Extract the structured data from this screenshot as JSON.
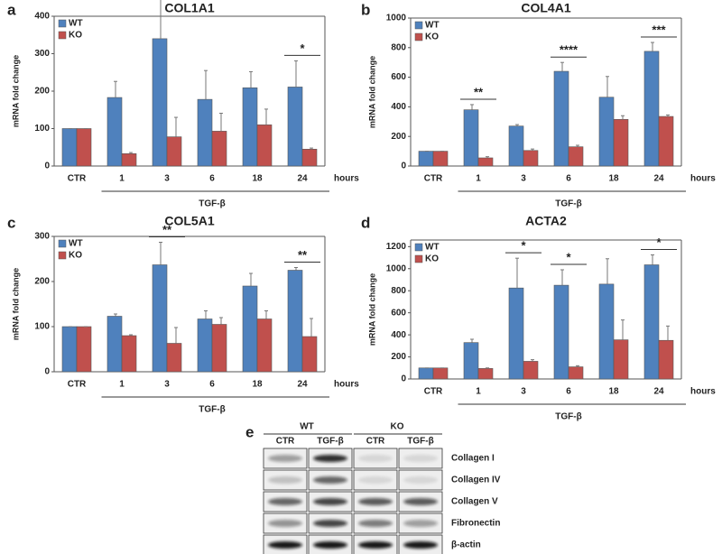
{
  "chart_data": [
    {
      "type": "bar",
      "panel": "a",
      "title": "COL1A1",
      "y_label": "mRNA fold change",
      "x_unit": "hours",
      "group_label": "TGF-β",
      "categories": [
        "CTR",
        "1",
        "3",
        "6",
        "18",
        "24"
      ],
      "series": [
        {
          "name": "WT",
          "color": "#4f81bd",
          "values": [
            100,
            183,
            340,
            178,
            209,
            211
          ],
          "errors": [
            0,
            43,
            120,
            77,
            43,
            70
          ]
        },
        {
          "name": "KO",
          "color": "#c0504d",
          "values": [
            100,
            33,
            78,
            93,
            110,
            45
          ],
          "errors": [
            0,
            3,
            52,
            48,
            42,
            3
          ]
        }
      ],
      "significance": [
        null,
        null,
        null,
        null,
        null,
        "*"
      ],
      "ylim": [
        0,
        400
      ],
      "yticks": [
        0,
        100,
        200,
        300,
        400
      ]
    },
    {
      "type": "bar",
      "panel": "b",
      "title": "COL4A1",
      "y_label": "mRNA fold change",
      "x_unit": "hours",
      "group_label": "TGF-β",
      "categories": [
        "CTR",
        "1",
        "3",
        "6",
        "18",
        "24"
      ],
      "series": [
        {
          "name": "WT",
          "color": "#4f81bd",
          "values": [
            100,
            380,
            270,
            640,
            465,
            775
          ],
          "errors": [
            0,
            35,
            10,
            60,
            140,
            60
          ]
        },
        {
          "name": "KO",
          "color": "#c0504d",
          "values": [
            100,
            55,
            105,
            130,
            315,
            335
          ],
          "errors": [
            0,
            8,
            10,
            10,
            25,
            10
          ]
        }
      ],
      "significance": [
        null,
        "**",
        null,
        "****",
        null,
        "***"
      ],
      "ylim": [
        0,
        1000
      ],
      "yticks": [
        0,
        200,
        400,
        600,
        800,
        1000
      ]
    },
    {
      "type": "bar",
      "panel": "c",
      "title": "COL5A1",
      "y_label": "mRNA fold change",
      "x_unit": "hours",
      "group_label": "TGF-β",
      "categories": [
        "CTR",
        "1",
        "3",
        "6",
        "18",
        "24"
      ],
      "series": [
        {
          "name": "WT",
          "color": "#4f81bd",
          "values": [
            100,
            123,
            237,
            117,
            190,
            225
          ],
          "errors": [
            0,
            5,
            50,
            18,
            28,
            6
          ]
        },
        {
          "name": "KO",
          "color": "#c0504d",
          "values": [
            100,
            80,
            63,
            105,
            117,
            78
          ],
          "errors": [
            0,
            2,
            35,
            15,
            18,
            40
          ]
        }
      ],
      "significance": [
        null,
        null,
        "**",
        null,
        null,
        "**"
      ],
      "ylim": [
        0,
        300
      ],
      "yticks": [
        0,
        100,
        200,
        300
      ]
    },
    {
      "type": "bar",
      "panel": "d",
      "title": "ACTA2",
      "y_label": "mRNA fold change",
      "x_unit": "hours",
      "group_label": "TGF-β",
      "categories": [
        "CTR",
        "1",
        "3",
        "6",
        "18",
        "24"
      ],
      "series": [
        {
          "name": "WT",
          "color": "#4f81bd",
          "values": [
            100,
            330,
            825,
            850,
            860,
            1035
          ],
          "errors": [
            0,
            30,
            270,
            140,
            230,
            90
          ]
        },
        {
          "name": "KO",
          "color": "#c0504d",
          "values": [
            100,
            95,
            160,
            110,
            355,
            350
          ],
          "errors": [
            0,
            5,
            15,
            10,
            180,
            130
          ]
        }
      ],
      "significance": [
        null,
        null,
        "*",
        "*",
        null,
        "*"
      ],
      "ylim": [
        0,
        1260
      ],
      "yticks": [
        0,
        200,
        400,
        600,
        800,
        1000,
        1200
      ]
    }
  ],
  "blot": {
    "panel": "e",
    "groups": [
      {
        "label": "WT",
        "lanes": [
          "CTR",
          "TGF-β"
        ]
      },
      {
        "label": "KO",
        "lanes": [
          "CTR",
          "TGF-β"
        ]
      }
    ],
    "rows": [
      "Collagen I",
      "Collagen IV",
      "Collagen V",
      "Fibronectin",
      "β-actin"
    ]
  }
}
